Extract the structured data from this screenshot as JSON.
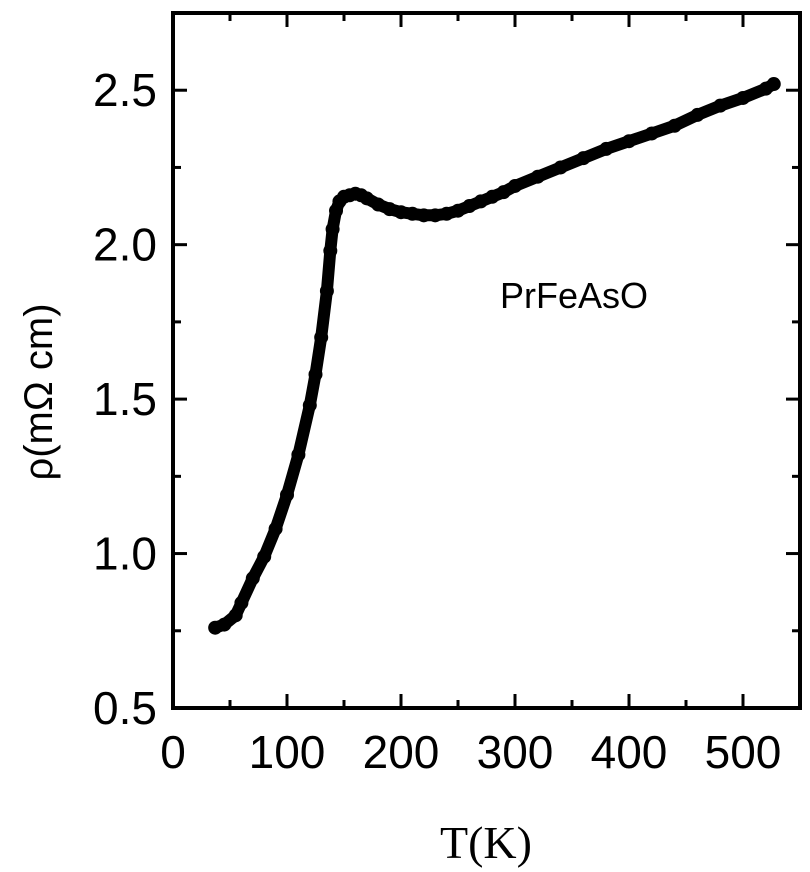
{
  "chart_data": {
    "type": "line",
    "title": "",
    "xlabel": "T(K)",
    "ylabel": "ρ(mΩ cm)",
    "xlim": [
      0,
      550
    ],
    "ylim": [
      0.5,
      2.75
    ],
    "xticks": [
      0,
      100,
      200,
      300,
      400,
      500
    ],
    "xtick_labels": [
      "0",
      "100",
      "200",
      "300",
      "400",
      "500"
    ],
    "yticks": [
      0.5,
      1.0,
      1.5,
      2.0,
      2.5
    ],
    "ytick_labels": [
      "0.5",
      "1.0",
      "1.5",
      "2.0",
      "2.5"
    ],
    "annotation": "PrFeAsO",
    "grid": false,
    "series": [
      {
        "name": "PrFeAsO",
        "color": "#000000",
        "x": [
          37,
          45,
          55,
          60,
          70,
          80,
          90,
          100,
          110,
          120,
          125,
          130,
          135,
          138,
          140,
          143,
          146,
          150,
          155,
          160,
          165,
          170,
          180,
          190,
          200,
          210,
          220,
          230,
          240,
          250,
          260,
          270,
          280,
          290,
          300,
          320,
          340,
          360,
          380,
          400,
          420,
          440,
          460,
          480,
          500,
          520,
          527
        ],
        "y": [
          0.76,
          0.77,
          0.8,
          0.84,
          0.92,
          0.99,
          1.08,
          1.19,
          1.32,
          1.48,
          1.58,
          1.7,
          1.85,
          1.98,
          2.05,
          2.11,
          2.14,
          2.155,
          2.16,
          2.165,
          2.16,
          2.15,
          2.13,
          2.115,
          2.105,
          2.1,
          2.095,
          2.095,
          2.1,
          2.11,
          2.125,
          2.14,
          2.155,
          2.17,
          2.19,
          2.22,
          2.25,
          2.28,
          2.31,
          2.335,
          2.36,
          2.385,
          2.42,
          2.45,
          2.475,
          2.505,
          2.52
        ]
      }
    ]
  }
}
